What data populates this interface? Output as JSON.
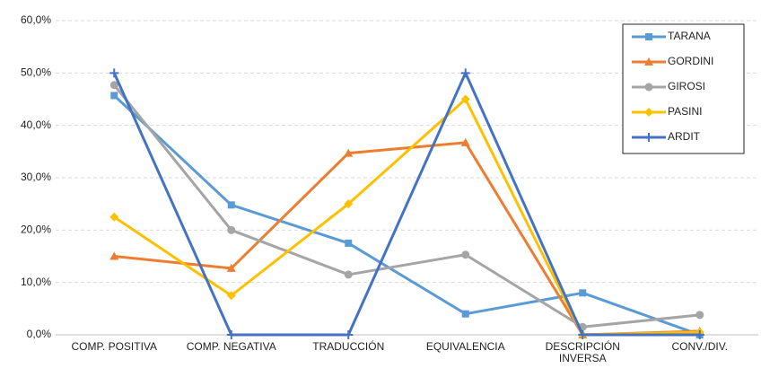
{
  "chart_data": {
    "type": "line",
    "categories": [
      "COMP. POSITIVA",
      "COMP. NEGATIVA",
      "TRADUCCIÓN",
      "EQUIVALENCIA",
      "DESCRIPCIÓN INVERSA",
      "CONV./DIV."
    ],
    "series": [
      {
        "name": "TARANA",
        "color": "#5b9bd5",
        "marker": "square",
        "values": [
          45.7,
          24.8,
          17.5,
          4.0,
          8.0,
          0
        ]
      },
      {
        "name": "GORDINI",
        "color": "#ed7d31",
        "marker": "triangle",
        "values": [
          15.0,
          12.7,
          34.7,
          36.7,
          0,
          0.7
        ]
      },
      {
        "name": "GIROSI",
        "color": "#a5a5a5",
        "marker": "circle",
        "values": [
          47.7,
          20.0,
          11.5,
          15.3,
          1.5,
          3.8
        ]
      },
      {
        "name": "PASINI",
        "color": "#ffc000",
        "marker": "diamond",
        "values": [
          22.5,
          7.5,
          25.0,
          45.0,
          0,
          0.5
        ]
      },
      {
        "name": "ARDIT",
        "color": "#4472c4",
        "marker": "plus",
        "values": [
          50,
          0,
          0,
          50,
          0,
          0
        ]
      }
    ],
    "ylim": [
      0,
      60
    ],
    "yticks": [
      {
        "value": 0,
        "label": "0,0%"
      },
      {
        "value": 10,
        "label": "10,0%"
      },
      {
        "value": 20,
        "label": "20,0%"
      },
      {
        "value": 30,
        "label": "30,0%"
      },
      {
        "value": 40,
        "label": "40,0%"
      },
      {
        "value": 50,
        "label": "50,0%"
      },
      {
        "value": 60,
        "label": "60,0%"
      }
    ],
    "grid": true,
    "legend": "top-right"
  }
}
